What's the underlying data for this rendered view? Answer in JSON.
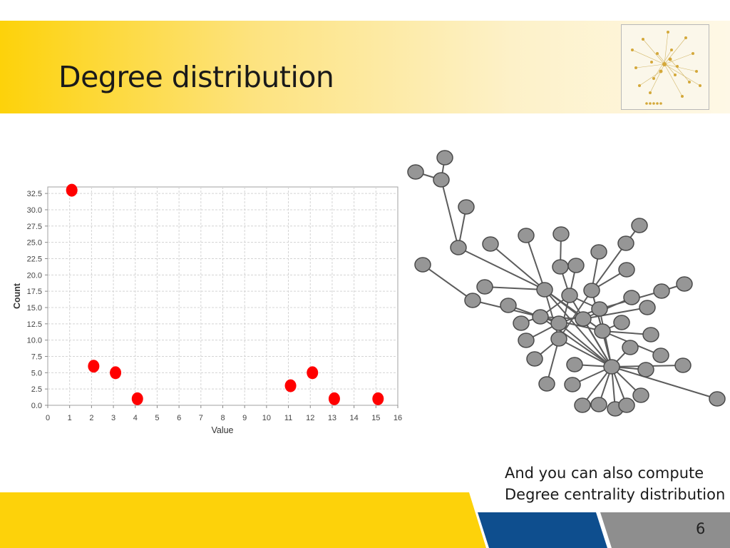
{
  "slide": {
    "title": "Degree distribution",
    "caption_line1": "And you can also compute",
    "caption_line2": "Degree centrality distribution",
    "page_number": "6"
  },
  "colors": {
    "accent_yellow": "#fdd20a",
    "accent_blue": "#0e4e8e",
    "accent_gray": "#8e8e8e",
    "point_red": "#ff0000",
    "node_gray": "#969696"
  },
  "chart_data": {
    "type": "scatter",
    "title": "",
    "xlabel": "Value",
    "ylabel": "Count",
    "xlim": [
      0,
      16
    ],
    "ylim": [
      0,
      33.5
    ],
    "x_ticks": [
      0,
      1,
      2,
      3,
      4,
      5,
      6,
      7,
      8,
      9,
      10,
      11,
      12,
      13,
      14,
      15,
      16
    ],
    "x_tick_labels": [
      "0",
      "1",
      "2",
      "3",
      "4",
      "5",
      "6",
      "7",
      "8",
      "9",
      "10",
      "11",
      "12",
      "13",
      "14",
      "15",
      "16"
    ],
    "y_ticks": [
      0,
      2.5,
      5,
      7.5,
      10,
      12.5,
      15,
      17.5,
      20,
      22.5,
      25,
      27.5,
      30,
      32.5
    ],
    "y_tick_labels": [
      "0.0",
      "2.5",
      "5.0",
      "7.5",
      "10.0",
      "12.5",
      "15.0",
      "17.5",
      "20.0",
      "22.5",
      "25.0",
      "27.5",
      "30.0",
      "32.5"
    ],
    "grid": true,
    "series": [
      {
        "points": [
          {
            "x": 1,
            "y": 33
          },
          {
            "x": 2,
            "y": 6
          },
          {
            "x": 3,
            "y": 5
          },
          {
            "x": 4,
            "y": 1
          },
          {
            "x": 11,
            "y": 3
          },
          {
            "x": 12,
            "y": 5
          },
          {
            "x": 13,
            "y": 1
          },
          {
            "x": 15,
            "y": 1
          }
        ]
      }
    ]
  }
}
